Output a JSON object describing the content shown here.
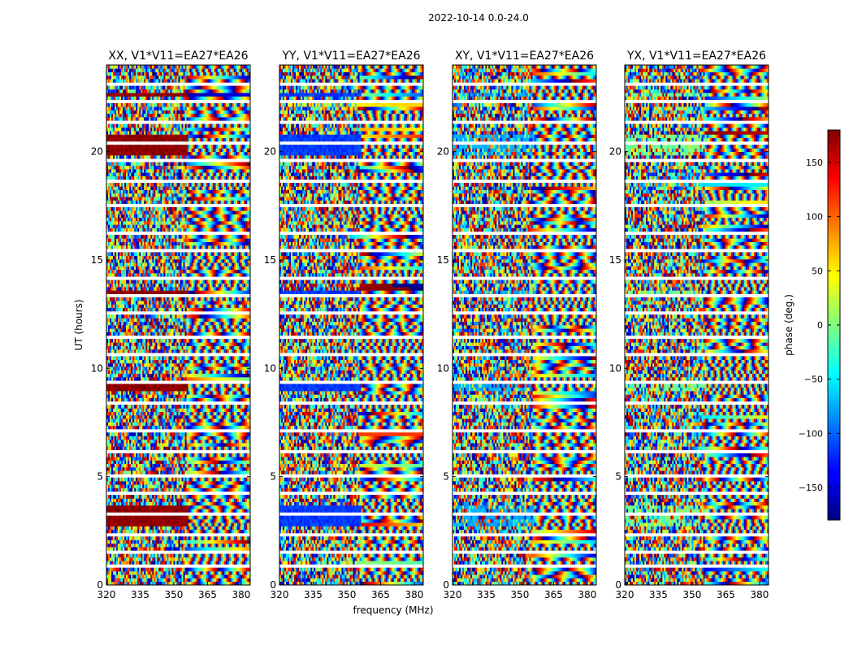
{
  "figure": {
    "suptitle": "2022-10-14 0.0-24.0"
  },
  "chart_data": {
    "type": "heatmap",
    "title": "2022-10-14 0.0-24.0",
    "xlabel": "frequency (MHz)",
    "ylabel": "UT (hours)",
    "xlim": [
      320,
      384
    ],
    "ylim": [
      0,
      24
    ],
    "xticks": [
      320,
      335,
      350,
      365,
      380
    ],
    "yticks": [
      0,
      5,
      10,
      15,
      20
    ],
    "panels": [
      {
        "title": "XX, V1*V11=EA27*EA26",
        "band_phase": 175
      },
      {
        "title": "YY, V1*V11=EA27*EA26",
        "band_phase": -115
      },
      {
        "title": "XY, V1*V11=EA27*EA26",
        "band_phase": -75
      },
      {
        "title": "YX, V1*V11=EA27*EA26",
        "band_phase": -5
      }
    ],
    "colorbar": {
      "label": "phase (deg.)",
      "range": [
        -180,
        180
      ],
      "ticks": [
        150,
        100,
        50,
        0,
        -50,
        -100,
        -150
      ],
      "colormap": "jet"
    }
  }
}
